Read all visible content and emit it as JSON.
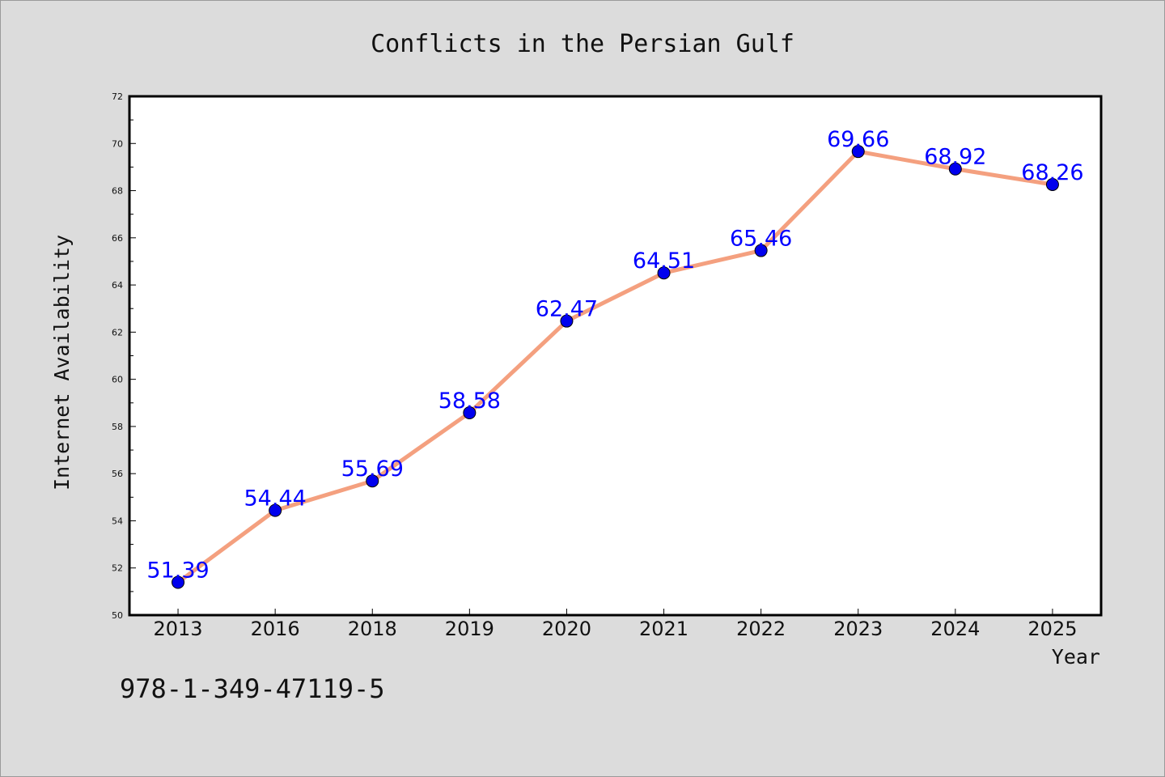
{
  "chart_data": {
    "type": "line",
    "title": "Conflicts in the Persian Gulf",
    "xlabel": "Year",
    "ylabel": "Internet Availability",
    "categories": [
      "2013",
      "2016",
      "2018",
      "2019",
      "2020",
      "2021",
      "2022",
      "2023",
      "2024",
      "2025"
    ],
    "values": [
      51.39,
      54.44,
      55.69,
      58.58,
      62.47,
      64.51,
      65.46,
      69.66,
      68.92,
      68.26
    ],
    "data_labels": [
      "51.39",
      "54.44",
      "55.69",
      "58.58",
      "62.47",
      "64.51",
      "65.46",
      "69.66",
      "68.92",
      "68.26"
    ],
    "ylim": [
      50,
      72
    ],
    "y_ticks": [
      "50",
      "52",
      "54",
      "56",
      "58",
      "60",
      "62",
      "64",
      "66",
      "68",
      "70",
      "72"
    ],
    "grid": false,
    "line_color": "#f4a07f",
    "marker_color": "#0000ee",
    "label_color": "#0000ff"
  },
  "footer": {
    "code": "978-1-349-47119-5"
  }
}
